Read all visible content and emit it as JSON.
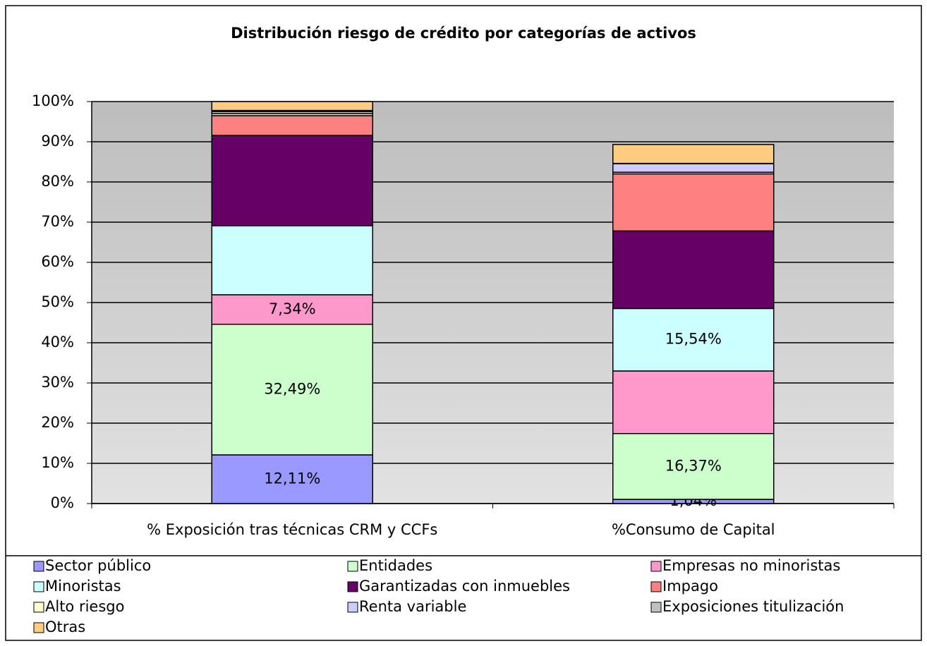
{
  "chart_data": {
    "type": "bar",
    "stacked": true,
    "title": "Distribución  riesgo de crédito por categorías de activos",
    "categories": [
      "% Exposición tras técnicas CRM y CCFs",
      "%Consumo de Capital"
    ],
    "ylim": [
      0,
      100
    ],
    "yticks": [
      {
        "value": 0,
        "label": "0%"
      },
      {
        "value": 10,
        "label": "10%"
      },
      {
        "value": 20,
        "label": "20%"
      },
      {
        "value": 30,
        "label": "30%"
      },
      {
        "value": 40,
        "label": "40%"
      },
      {
        "value": 50,
        "label": "50%"
      },
      {
        "value": 60,
        "label": "60%"
      },
      {
        "value": 70,
        "label": "70%"
      },
      {
        "value": 80,
        "label": "80%"
      },
      {
        "value": 90,
        "label": "90%"
      },
      {
        "value": 100,
        "label": "100%"
      }
    ],
    "grid": true,
    "legend": "bottom",
    "series": [
      {
        "name": "Sector público",
        "color": "#9999ff",
        "values": [
          12.11,
          1.04
        ],
        "value_labels": [
          "12,11%",
          "1,04%"
        ]
      },
      {
        "name": "Entidades",
        "color": "#ccffcc",
        "values": [
          32.49,
          16.37
        ],
        "value_labels": [
          "32,49%",
          "16,37%"
        ]
      },
      {
        "name": "Empresas no minoristas",
        "color": "#ff99cc",
        "values": [
          7.34,
          15.57
        ],
        "value_labels": [
          "7,34%",
          null
        ]
      },
      {
        "name": "Minoristas",
        "color": "#ccffff",
        "values": [
          17.18,
          15.54
        ],
        "value_labels": [
          null,
          "15,54%"
        ]
      },
      {
        "name": "Garantizadas con inmuebles",
        "color": "#660066",
        "values": [
          22.46,
          19.3
        ]
      },
      {
        "name": "Impago",
        "color": "#ff8080",
        "values": [
          4.91,
          14.2
        ]
      },
      {
        "name": "Alto riesgo",
        "color": "#ffffcc",
        "values": [
          0.5,
          0.4
        ]
      },
      {
        "name": "Renta variable",
        "color": "#ccccff",
        "values": [
          0.5,
          2.1
        ]
      },
      {
        "name": "Exposiciones titulización",
        "color": "#c0c0c0",
        "values": [
          0.3,
          0.1
        ]
      },
      {
        "name": "Otras",
        "color": "#ffcc80",
        "values": [
          2.21,
          4.7
        ]
      }
    ]
  }
}
